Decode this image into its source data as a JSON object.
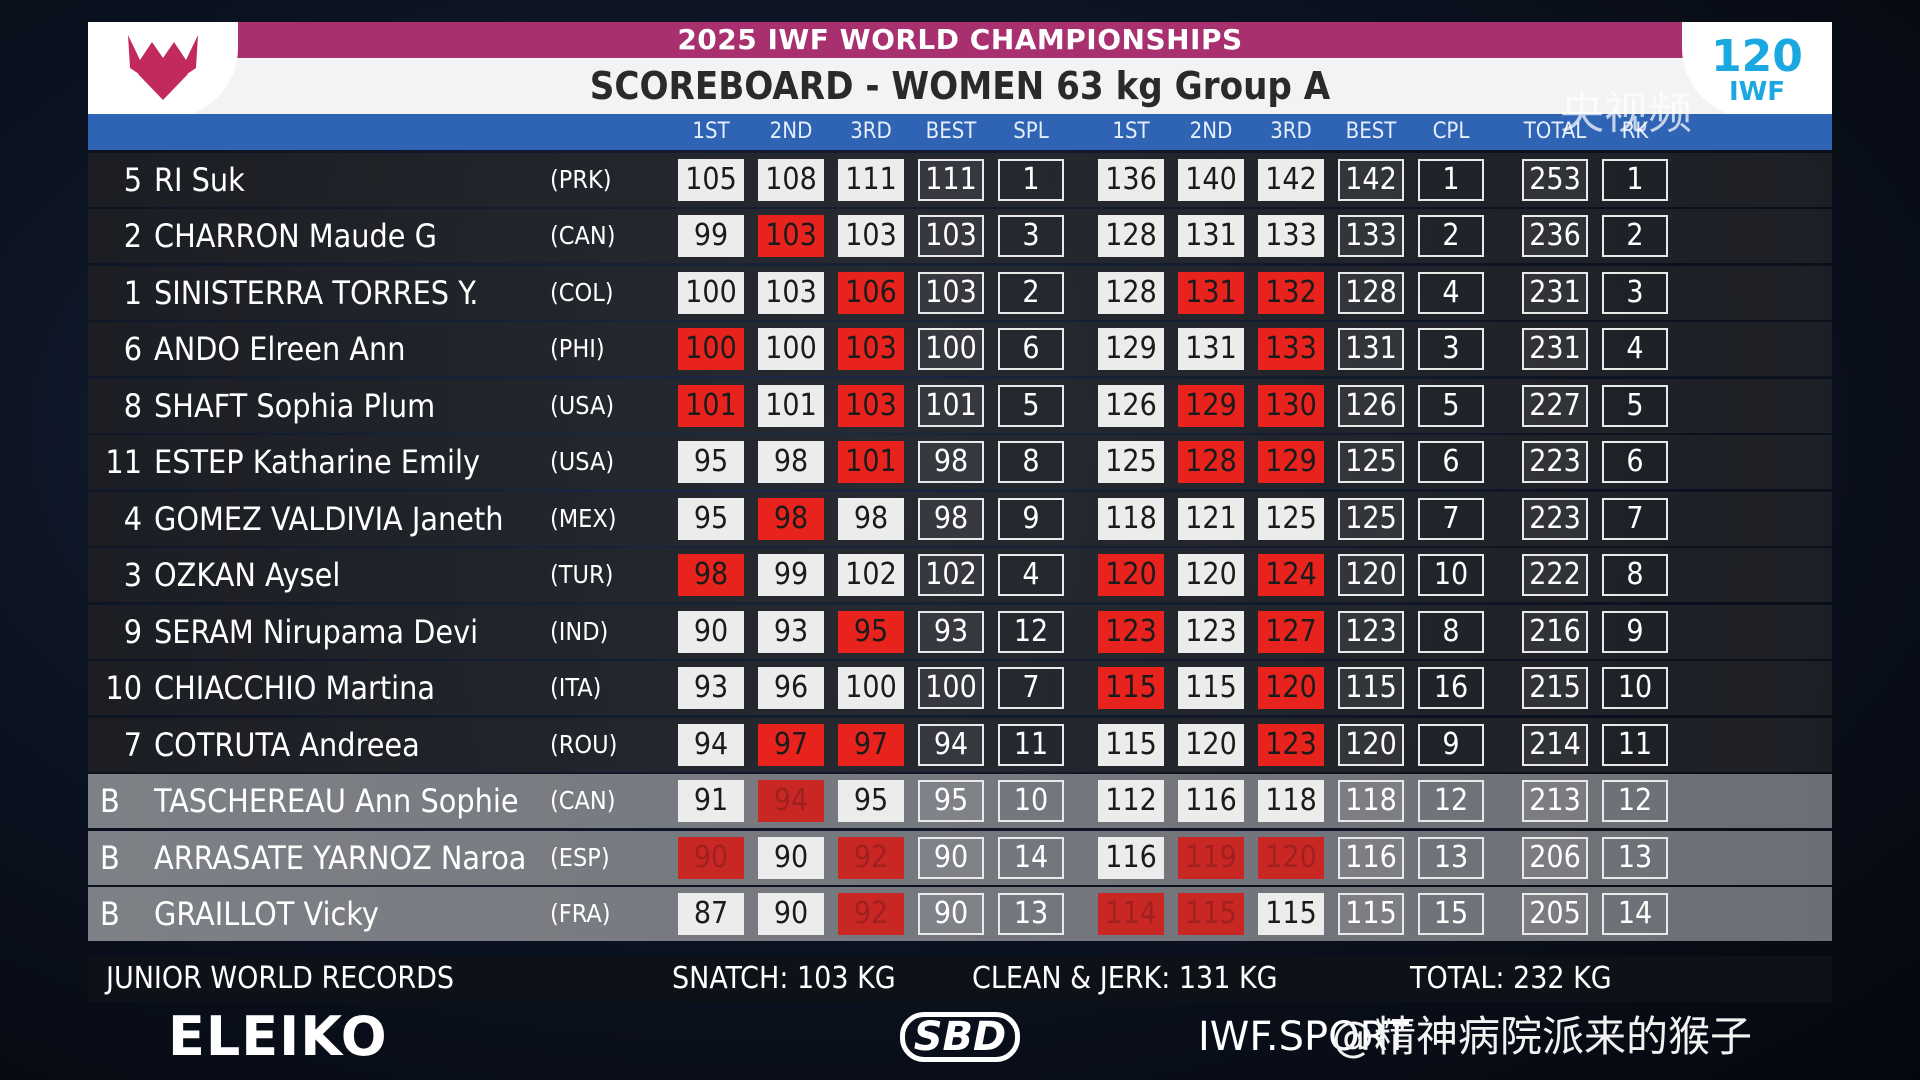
{
  "header": {
    "event": "2025 IWF WORLD CHAMPIONSHIPS",
    "title": "SCOREBOARD - WOMEN 63 kg Group A",
    "iwf_logo_number": "120",
    "iwf_logo_text": "IWF",
    "columns": [
      "1ST",
      "2ND",
      "3RD",
      "BEST",
      "SPL",
      "1ST",
      "2ND",
      "3RD",
      "BEST",
      "CPL",
      "TOTAL",
      "RK"
    ]
  },
  "colors": {
    "good_lift": "#ececec",
    "failed_lift": "#e8231d",
    "header_magenta": "#a8306f",
    "header_blue": "#2f63b3"
  },
  "athletes": [
    {
      "lot": "5",
      "name": "RI Suk",
      "nation": "(PRK)",
      "snatch": [
        {
          "v": "105",
          "r": "good"
        },
        {
          "v": "108",
          "r": "good"
        },
        {
          "v": "111",
          "r": "good"
        }
      ],
      "snatch_best": "111",
      "snatch_rank": "1",
      "cj": [
        {
          "v": "136",
          "r": "good"
        },
        {
          "v": "140",
          "r": "good"
        },
        {
          "v": "142",
          "r": "good"
        }
      ],
      "cj_best": "142",
      "cj_rank": "1",
      "total": "253",
      "total_rank": "1",
      "group": "A"
    },
    {
      "lot": "2",
      "name": "CHARRON Maude G",
      "nation": "(CAN)",
      "snatch": [
        {
          "v": "99",
          "r": "good"
        },
        {
          "v": "103",
          "r": "fail"
        },
        {
          "v": "103",
          "r": "good"
        }
      ],
      "snatch_best": "103",
      "snatch_rank": "3",
      "cj": [
        {
          "v": "128",
          "r": "good"
        },
        {
          "v": "131",
          "r": "good"
        },
        {
          "v": "133",
          "r": "good"
        }
      ],
      "cj_best": "133",
      "cj_rank": "2",
      "total": "236",
      "total_rank": "2",
      "group": "A"
    },
    {
      "lot": "1",
      "name": "SINISTERRA TORRES Y.",
      "nation": "(COL)",
      "snatch": [
        {
          "v": "100",
          "r": "good"
        },
        {
          "v": "103",
          "r": "good"
        },
        {
          "v": "106",
          "r": "fail"
        }
      ],
      "snatch_best": "103",
      "snatch_rank": "2",
      "cj": [
        {
          "v": "128",
          "r": "good"
        },
        {
          "v": "131",
          "r": "fail"
        },
        {
          "v": "132",
          "r": "fail"
        }
      ],
      "cj_best": "128",
      "cj_rank": "4",
      "total": "231",
      "total_rank": "3",
      "group": "A"
    },
    {
      "lot": "6",
      "name": "ANDO Elreen Ann",
      "nation": "(PHI)",
      "snatch": [
        {
          "v": "100",
          "r": "fail"
        },
        {
          "v": "100",
          "r": "good"
        },
        {
          "v": "103",
          "r": "fail"
        }
      ],
      "snatch_best": "100",
      "snatch_rank": "6",
      "cj": [
        {
          "v": "129",
          "r": "good"
        },
        {
          "v": "131",
          "r": "good"
        },
        {
          "v": "133",
          "r": "fail"
        }
      ],
      "cj_best": "131",
      "cj_rank": "3",
      "total": "231",
      "total_rank": "4",
      "group": "A"
    },
    {
      "lot": "8",
      "name": "SHAFT Sophia Plum",
      "nation": "(USA)",
      "snatch": [
        {
          "v": "101",
          "r": "fail"
        },
        {
          "v": "101",
          "r": "good"
        },
        {
          "v": "103",
          "r": "fail"
        }
      ],
      "snatch_best": "101",
      "snatch_rank": "5",
      "cj": [
        {
          "v": "126",
          "r": "good"
        },
        {
          "v": "129",
          "r": "fail"
        },
        {
          "v": "130",
          "r": "fail"
        }
      ],
      "cj_best": "126",
      "cj_rank": "5",
      "total": "227",
      "total_rank": "5",
      "group": "A"
    },
    {
      "lot": "11",
      "name": "ESTEP Katharine Emily",
      "nation": "(USA)",
      "snatch": [
        {
          "v": "95",
          "r": "good"
        },
        {
          "v": "98",
          "r": "good"
        },
        {
          "v": "101",
          "r": "fail"
        }
      ],
      "snatch_best": "98",
      "snatch_rank": "8",
      "cj": [
        {
          "v": "125",
          "r": "good"
        },
        {
          "v": "128",
          "r": "fail"
        },
        {
          "v": "129",
          "r": "fail"
        }
      ],
      "cj_best": "125",
      "cj_rank": "6",
      "total": "223",
      "total_rank": "6",
      "group": "A"
    },
    {
      "lot": "4",
      "name": "GOMEZ VALDIVIA Janeth",
      "nation": "(MEX)",
      "snatch": [
        {
          "v": "95",
          "r": "good"
        },
        {
          "v": "98",
          "r": "fail"
        },
        {
          "v": "98",
          "r": "good"
        }
      ],
      "snatch_best": "98",
      "snatch_rank": "9",
      "cj": [
        {
          "v": "118",
          "r": "good"
        },
        {
          "v": "121",
          "r": "good"
        },
        {
          "v": "125",
          "r": "good"
        }
      ],
      "cj_best": "125",
      "cj_rank": "7",
      "total": "223",
      "total_rank": "7",
      "group": "A"
    },
    {
      "lot": "3",
      "name": "OZKAN Aysel",
      "nation": "(TUR)",
      "snatch": [
        {
          "v": "98",
          "r": "fail"
        },
        {
          "v": "99",
          "r": "good"
        },
        {
          "v": "102",
          "r": "good"
        }
      ],
      "snatch_best": "102",
      "snatch_rank": "4",
      "cj": [
        {
          "v": "120",
          "r": "fail"
        },
        {
          "v": "120",
          "r": "good"
        },
        {
          "v": "124",
          "r": "fail"
        }
      ],
      "cj_best": "120",
      "cj_rank": "10",
      "total": "222",
      "total_rank": "8",
      "group": "A"
    },
    {
      "lot": "9",
      "name": "SERAM Nirupama Devi",
      "nation": "(IND)",
      "snatch": [
        {
          "v": "90",
          "r": "good"
        },
        {
          "v": "93",
          "r": "good"
        },
        {
          "v": "95",
          "r": "fail"
        }
      ],
      "snatch_best": "93",
      "snatch_rank": "12",
      "cj": [
        {
          "v": "123",
          "r": "fail"
        },
        {
          "v": "123",
          "r": "good"
        },
        {
          "v": "127",
          "r": "fail"
        }
      ],
      "cj_best": "123",
      "cj_rank": "8",
      "total": "216",
      "total_rank": "9",
      "group": "A"
    },
    {
      "lot": "10",
      "name": "CHIACCHIO Martina",
      "nation": "(ITA)",
      "snatch": [
        {
          "v": "93",
          "r": "good"
        },
        {
          "v": "96",
          "r": "good"
        },
        {
          "v": "100",
          "r": "good"
        }
      ],
      "snatch_best": "100",
      "snatch_rank": "7",
      "cj": [
        {
          "v": "115",
          "r": "fail"
        },
        {
          "v": "115",
          "r": "good"
        },
        {
          "v": "120",
          "r": "fail"
        }
      ],
      "cj_best": "115",
      "cj_rank": "16",
      "total": "215",
      "total_rank": "10",
      "group": "A"
    },
    {
      "lot": "7",
      "name": "COTRUTA Andreea",
      "nation": "(ROU)",
      "snatch": [
        {
          "v": "94",
          "r": "good"
        },
        {
          "v": "97",
          "r": "fail"
        },
        {
          "v": "97",
          "r": "fail"
        }
      ],
      "snatch_best": "94",
      "snatch_rank": "11",
      "cj": [
        {
          "v": "115",
          "r": "good"
        },
        {
          "v": "120",
          "r": "good"
        },
        {
          "v": "123",
          "r": "fail"
        }
      ],
      "cj_best": "120",
      "cj_rank": "9",
      "total": "214",
      "total_rank": "11",
      "group": "A"
    },
    {
      "lot": "B",
      "name": "TASCHEREAU Ann Sophie",
      "nation": "(CAN)",
      "snatch": [
        {
          "v": "91",
          "r": "good"
        },
        {
          "v": "94",
          "r": "pend"
        },
        {
          "v": "95",
          "r": "good"
        }
      ],
      "snatch_best": "95",
      "snatch_rank": "10",
      "cj": [
        {
          "v": "112",
          "r": "good"
        },
        {
          "v": "116",
          "r": "good"
        },
        {
          "v": "118",
          "r": "good"
        }
      ],
      "cj_best": "118",
      "cj_rank": "12",
      "total": "213",
      "total_rank": "12",
      "group": "B"
    },
    {
      "lot": "B",
      "name": "ARRASATE YARNOZ Naroa",
      "nation": "(ESP)",
      "snatch": [
        {
          "v": "90",
          "r": "pend"
        },
        {
          "v": "90",
          "r": "good"
        },
        {
          "v": "92",
          "r": "pend"
        }
      ],
      "snatch_best": "90",
      "snatch_rank": "14",
      "cj": [
        {
          "v": "116",
          "r": "good"
        },
        {
          "v": "119",
          "r": "pend"
        },
        {
          "v": "120",
          "r": "pend"
        }
      ],
      "cj_best": "116",
      "cj_rank": "13",
      "total": "206",
      "total_rank": "13",
      "group": "B"
    },
    {
      "lot": "B",
      "name": "GRAILLOT Vicky",
      "nation": "(FRA)",
      "snatch": [
        {
          "v": "87",
          "r": "good"
        },
        {
          "v": "90",
          "r": "good"
        },
        {
          "v": "92",
          "r": "pend"
        }
      ],
      "snatch_best": "90",
      "snatch_rank": "13",
      "cj": [
        {
          "v": "114",
          "r": "pend"
        },
        {
          "v": "115",
          "r": "pend"
        },
        {
          "v": "115",
          "r": "good"
        }
      ],
      "cj_best": "115",
      "cj_rank": "15",
      "total": "205",
      "total_rank": "14",
      "group": "B"
    }
  ],
  "footer": {
    "records_label": "JUNIOR WORLD RECORDS",
    "snatch": "SNATCH: 103 KG",
    "clean_jerk": "CLEAN & JERK: 131 KG",
    "total": "TOTAL: 232 KG"
  },
  "sponsors": {
    "eleiko": "ELEIKO",
    "sbd": "SBD",
    "site": "IWF.SPORT"
  },
  "overlay": {
    "broadcaster": "央视频",
    "watermark": "@精神病院派来的猴子"
  }
}
